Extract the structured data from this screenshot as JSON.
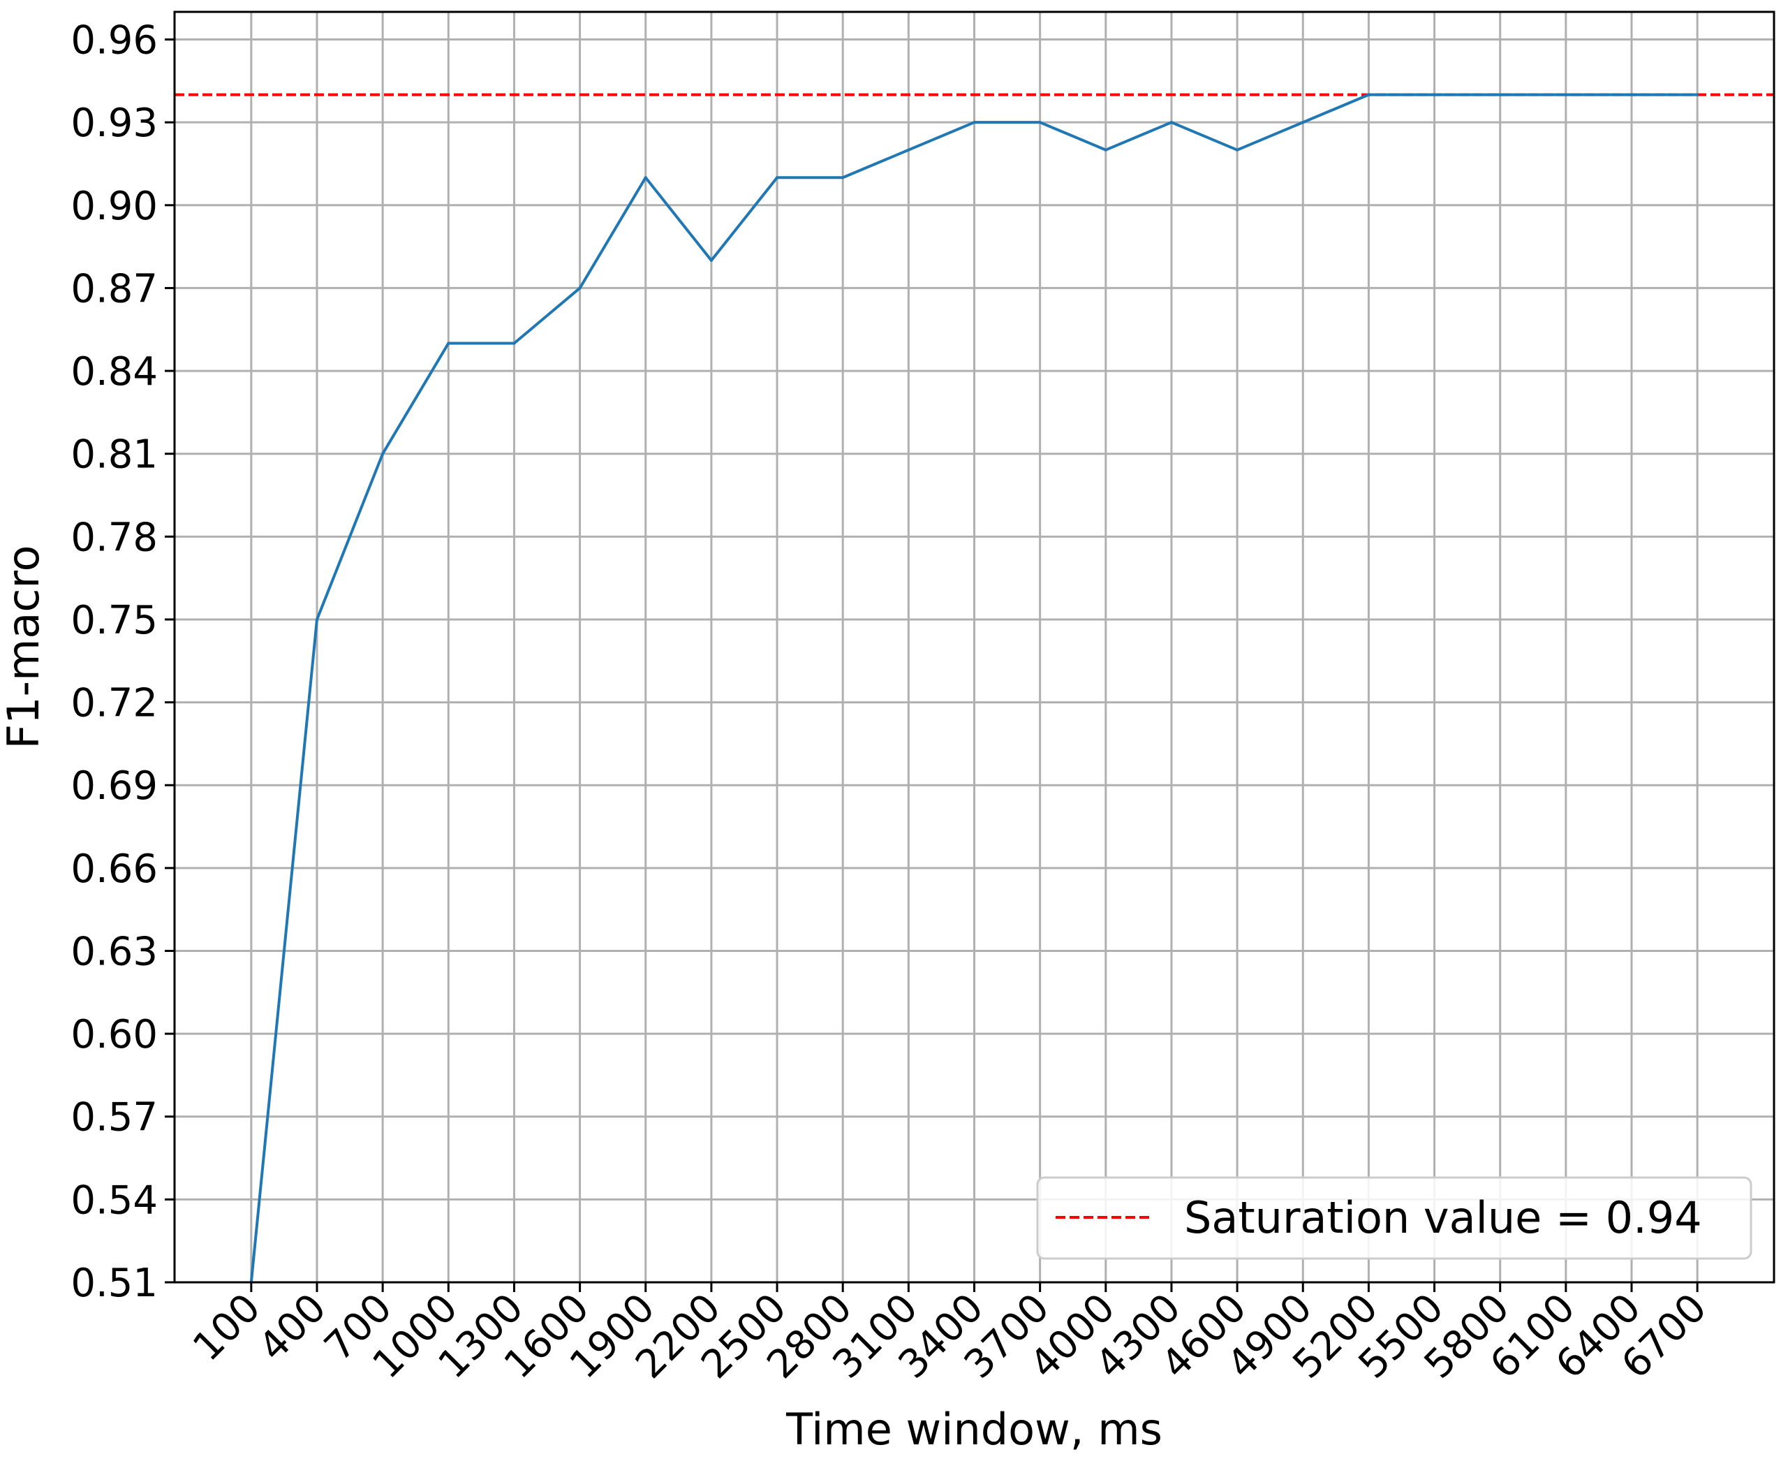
{
  "chart_data": {
    "type": "line",
    "xlabel": "Time window, ms",
    "ylabel": "F1-macro",
    "x_ticks": [
      100,
      400,
      700,
      1000,
      1300,
      1600,
      1900,
      2200,
      2500,
      2800,
      3100,
      3400,
      3700,
      4000,
      4300,
      4600,
      4900,
      5200,
      5500,
      5800,
      6100,
      6400,
      6700
    ],
    "y_ticks": [
      0.51,
      0.54,
      0.57,
      0.6,
      0.63,
      0.66,
      0.69,
      0.72,
      0.75,
      0.78,
      0.81,
      0.84,
      0.87,
      0.9,
      0.93,
      0.96
    ],
    "y_tick_labels": [
      "0.51",
      "0.54",
      "0.57",
      "0.60",
      "0.63",
      "0.66",
      "0.69",
      "0.72",
      "0.75",
      "0.78",
      "0.81",
      "0.84",
      "0.87",
      "0.90",
      "0.93",
      "0.96"
    ],
    "xlim": [
      -250,
      7050
    ],
    "ylim": [
      0.51,
      0.97
    ],
    "grid": true,
    "series": [
      {
        "color": "#1f77b4",
        "x": [
          100,
          400,
          700,
          1000,
          1300,
          1600,
          1900,
          2200,
          2500,
          2800,
          3100,
          3400,
          3700,
          4000,
          4300,
          4600,
          4900,
          5200,
          5500,
          5800,
          6100,
          6400,
          6700
        ],
        "y": [
          0.51,
          0.75,
          0.81,
          0.85,
          0.85,
          0.87,
          0.91,
          0.88,
          0.91,
          0.91,
          0.92,
          0.93,
          0.93,
          0.92,
          0.93,
          0.92,
          0.93,
          0.94,
          0.94,
          0.94,
          0.94,
          0.94,
          0.94
        ]
      }
    ],
    "reference_line": {
      "y": 0.94,
      "color": "#ff0000",
      "style": "dashed",
      "label": "Saturation value = 0.94"
    },
    "legend": {
      "placement": "lower-right",
      "entries": [
        "Saturation value = 0.94"
      ]
    }
  }
}
